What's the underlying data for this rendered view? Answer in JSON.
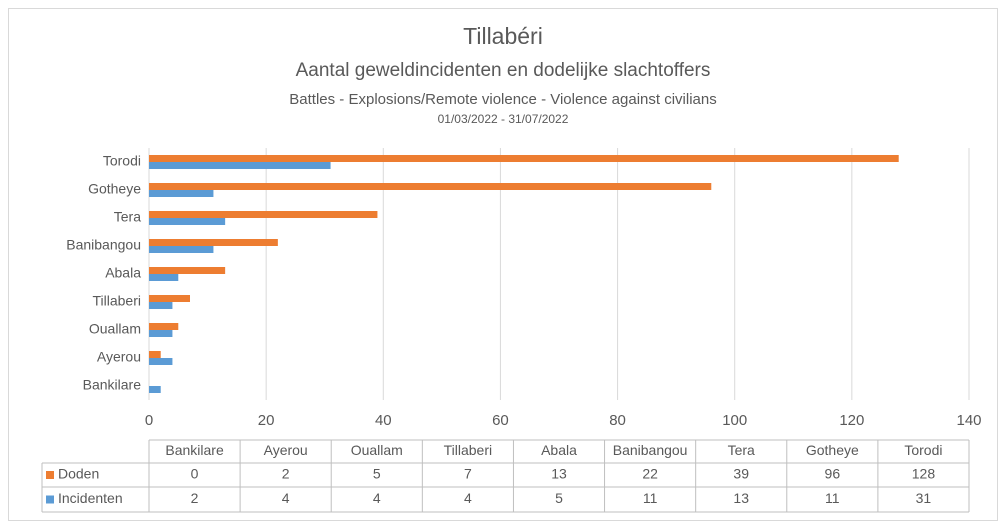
{
  "chart_data": {
    "type": "bar",
    "orientation": "horizontal",
    "title": "Tillabéri",
    "subtitle": "Aantal geweldincidenten en dodelijke slachtoffers",
    "subtitle2": "Battles - Explosions/Remote violence - Violence against civilians",
    "date_range": "01/03/2022 - 31/07/2022",
    "categories": [
      "Bankilare",
      "Ayerou",
      "Ouallam",
      "Tillaberi",
      "Abala",
      "Banibangou",
      "Tera",
      "Gotheye",
      "Torodi"
    ],
    "series": [
      {
        "name": "Doden",
        "color": "#ed7d31",
        "values": [
          0,
          2,
          5,
          7,
          13,
          22,
          39,
          96,
          128
        ]
      },
      {
        "name": "Incidenten",
        "color": "#5b9bd5",
        "values": [
          2,
          4,
          4,
          4,
          5,
          11,
          13,
          11,
          31
        ]
      }
    ],
    "xlim": [
      0,
      140
    ],
    "xticks": [
      0,
      20,
      40,
      60,
      80,
      100,
      120,
      140
    ],
    "grid": true
  }
}
